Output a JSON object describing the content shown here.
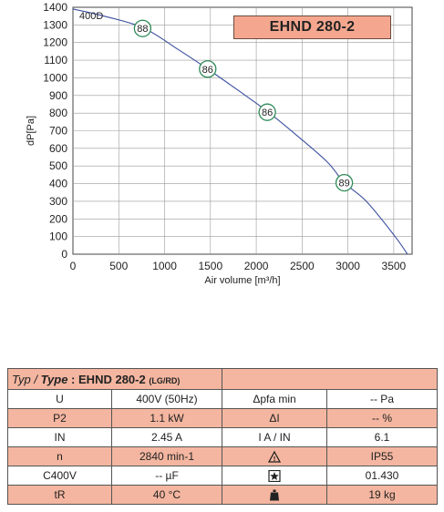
{
  "model_label": "EHND 280-2",
  "chart_data": {
    "type": "line",
    "xlabel": "Air volume [m³/h]",
    "ylabel": "dP[Pa]",
    "xlim": [
      0,
      3700
    ],
    "ylim": [
      0,
      1400
    ],
    "x_ticks": [
      "0",
      "500",
      "1000",
      "1500",
      "2000",
      "2500",
      "3000",
      "3500"
    ],
    "y_ticks": [
      "0",
      "100",
      "200",
      "300",
      "400",
      "500",
      "600",
      "700",
      "800",
      "900",
      "1000",
      "1100",
      "1200",
      "1300",
      "1400"
    ],
    "grid": true,
    "series": [
      {
        "name": "400D",
        "x": [
          0,
          300,
          760,
          1150,
          1470,
          1800,
          2120,
          2450,
          2780,
          2960,
          3200,
          3500,
          3650
        ],
        "y": [
          1390,
          1355,
          1285,
          1160,
          1050,
          930,
          810,
          670,
          520,
          405,
          300,
          110,
          0
        ]
      }
    ],
    "points": [
      {
        "x": 760,
        "y": 1280,
        "label": "88"
      },
      {
        "x": 1470,
        "y": 1050,
        "label": "86"
      },
      {
        "x": 2120,
        "y": 805,
        "label": "86"
      },
      {
        "x": 2960,
        "y": 405,
        "label": "89"
      }
    ],
    "curve_color": "#3b4fa0",
    "point_color": "#2e8b57"
  },
  "spec": {
    "typ_label": "Typ /",
    "type_label": "Type",
    "colon": ":",
    "type_value": "EHND 280-2",
    "type_suffix": "(LG/RD)",
    "rows": [
      {
        "label": "U",
        "value": "400V (50Hz)",
        "param": "Δpfa min",
        "pvalue": "-- Pa"
      },
      {
        "label": "P2",
        "value": "1.1 kW",
        "param": "ΔI",
        "pvalue": "-- %"
      },
      {
        "label": "IN",
        "value": "2.45 A",
        "param": "I A / IN",
        "pvalue": "6.1"
      },
      {
        "label": "n",
        "value": "2840 min-1",
        "param": "warning-triangle",
        "pvalue": "IP55"
      },
      {
        "label": "C400V",
        "value": "-- µF",
        "param": "star-box",
        "pvalue": "01.430"
      },
      {
        "label": "tR",
        "value": "40 °C",
        "param": "weight",
        "pvalue": "19 kg"
      }
    ]
  }
}
